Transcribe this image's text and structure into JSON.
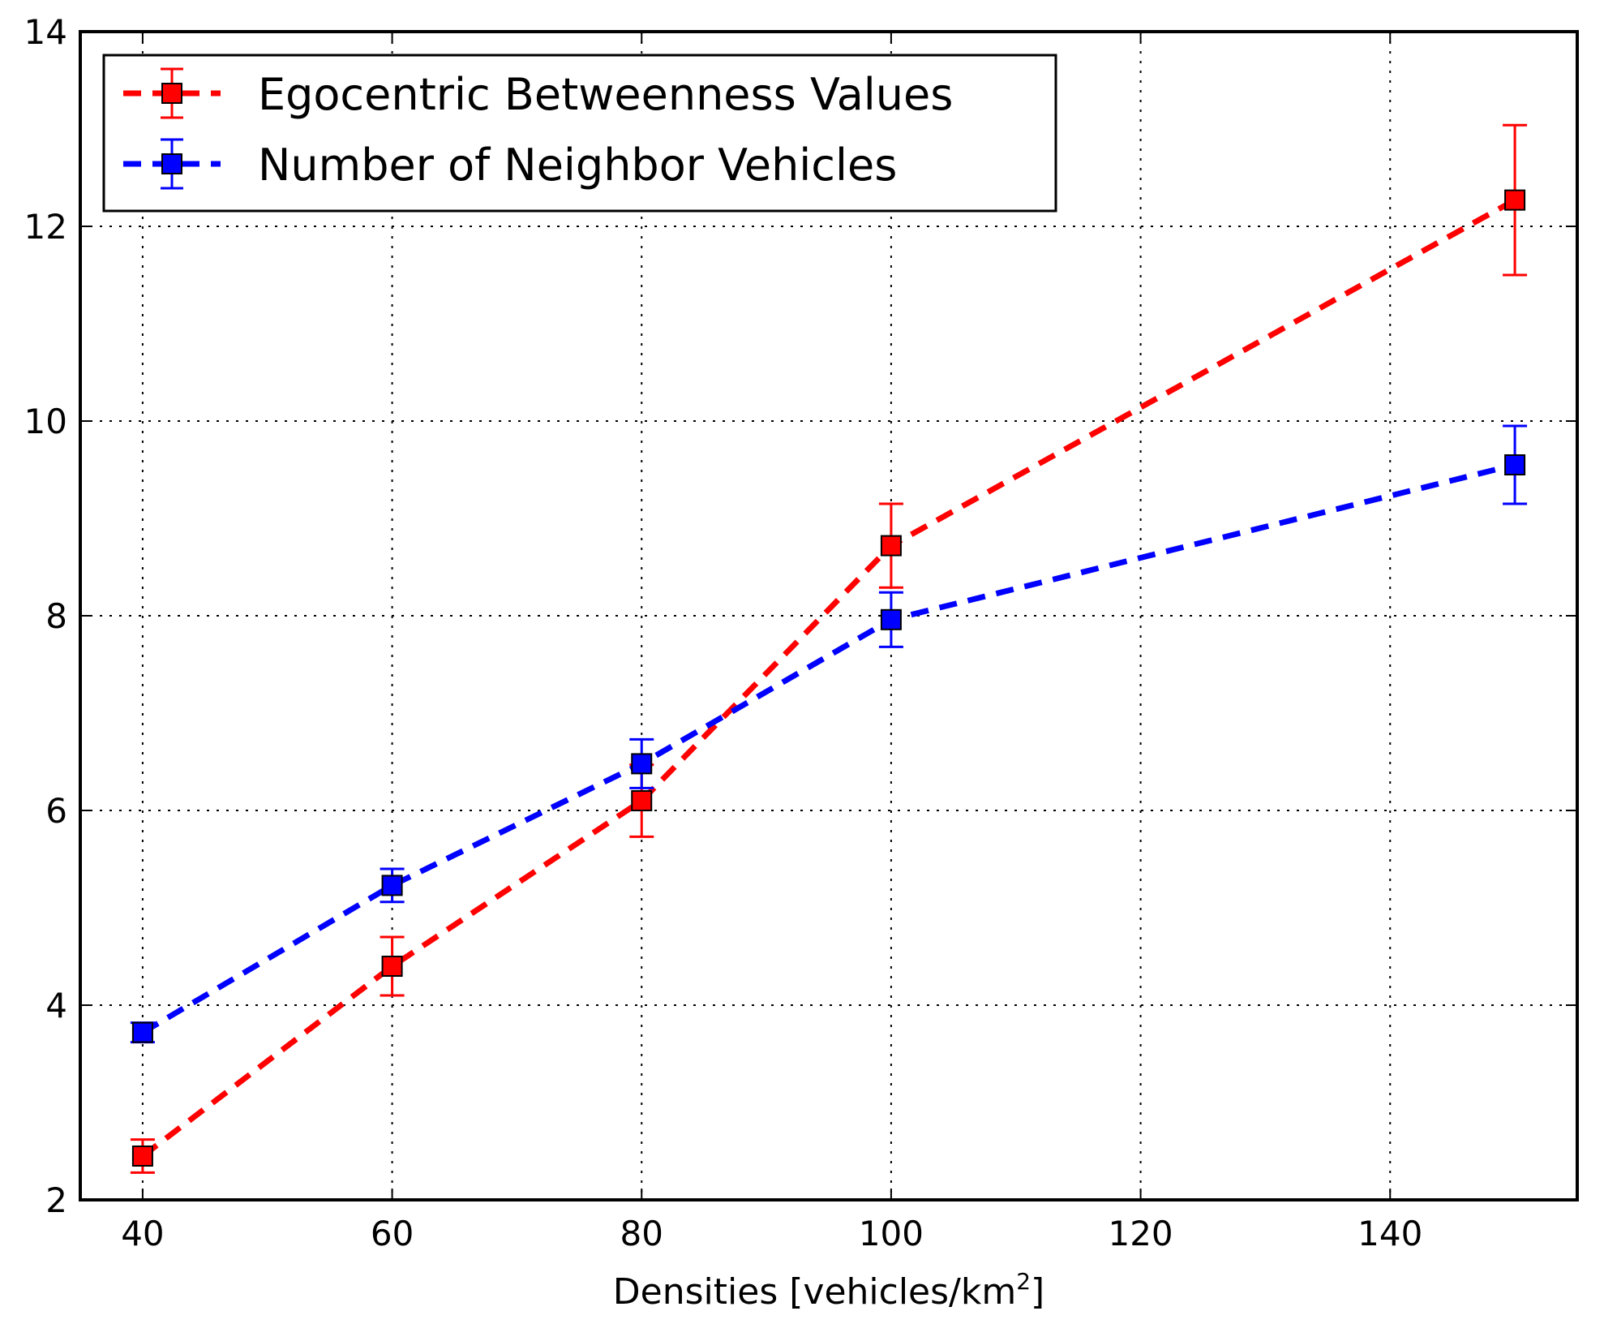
{
  "chart_data": {
    "type": "line",
    "title": "",
    "xlabel": "Densities [vehicles/km",
    "xlabel_superscript": "2",
    "xlabel_suffix": "]",
    "ylabel": "",
    "xlim": [
      35,
      155
    ],
    "ylim": [
      2,
      14
    ],
    "xticks": [
      "40",
      "60",
      "80",
      "100",
      "120",
      "140"
    ],
    "yticks": [
      "2",
      "4",
      "6",
      "8",
      "10",
      "12",
      "14"
    ],
    "grid": true,
    "legend_position": "top-left",
    "series": [
      {
        "name": "Egocentric Betweenness Values",
        "color": "#ff0000",
        "x": [
          40,
          60,
          80,
          100,
          150
        ],
        "y": [
          2.45,
          4.4,
          6.1,
          8.72,
          12.27
        ],
        "yerr": [
          0.17,
          0.3,
          0.37,
          0.43,
          0.77
        ]
      },
      {
        "name": "Number of Neighbor Vehicles",
        "color": "#0000ff",
        "x": [
          40,
          60,
          80,
          100,
          150
        ],
        "y": [
          3.72,
          5.23,
          6.48,
          7.96,
          9.55
        ],
        "yerr": [
          0.1,
          0.17,
          0.25,
          0.28,
          0.4
        ]
      }
    ]
  }
}
